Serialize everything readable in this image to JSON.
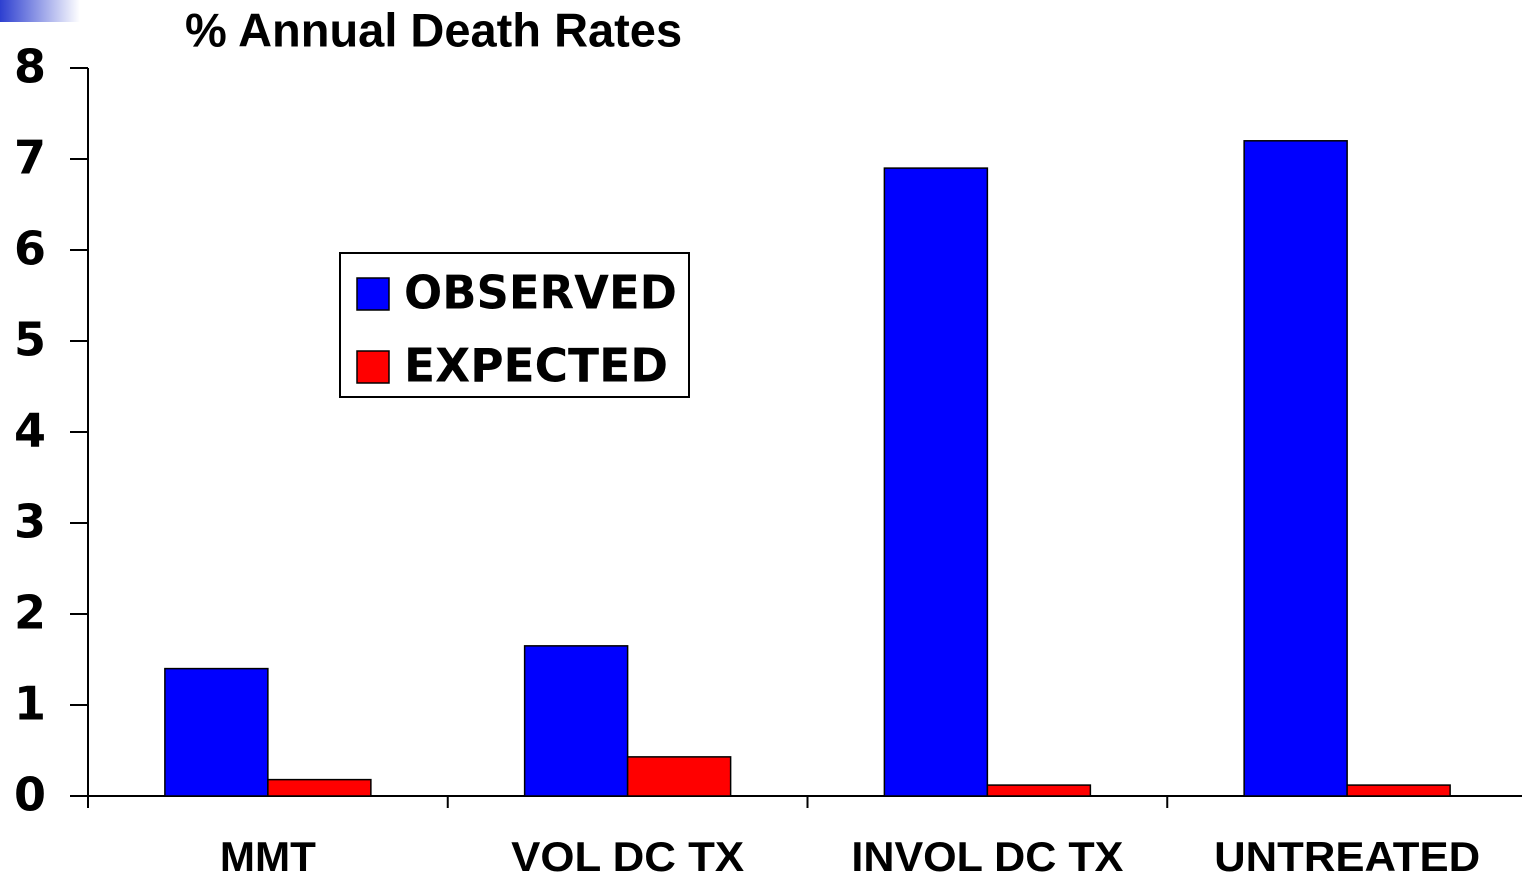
{
  "chart_data": {
    "type": "bar",
    "title": "% Annual Death Rates",
    "categories": [
      "MMT",
      "VOL DC TX",
      "INVOL DC TX",
      "UNTREATED"
    ],
    "series": [
      {
        "name": "OBSERVED",
        "color": "#0000ff",
        "values": [
          1.4,
          1.65,
          6.9,
          7.2
        ]
      },
      {
        "name": "EXPECTED",
        "color": "#ff0000",
        "values": [
          0.18,
          0.43,
          0.12,
          0.12
        ]
      }
    ],
    "ylim": [
      0,
      8
    ],
    "yticks": [
      0,
      1,
      2,
      3,
      4,
      5,
      6,
      7,
      8
    ]
  }
}
